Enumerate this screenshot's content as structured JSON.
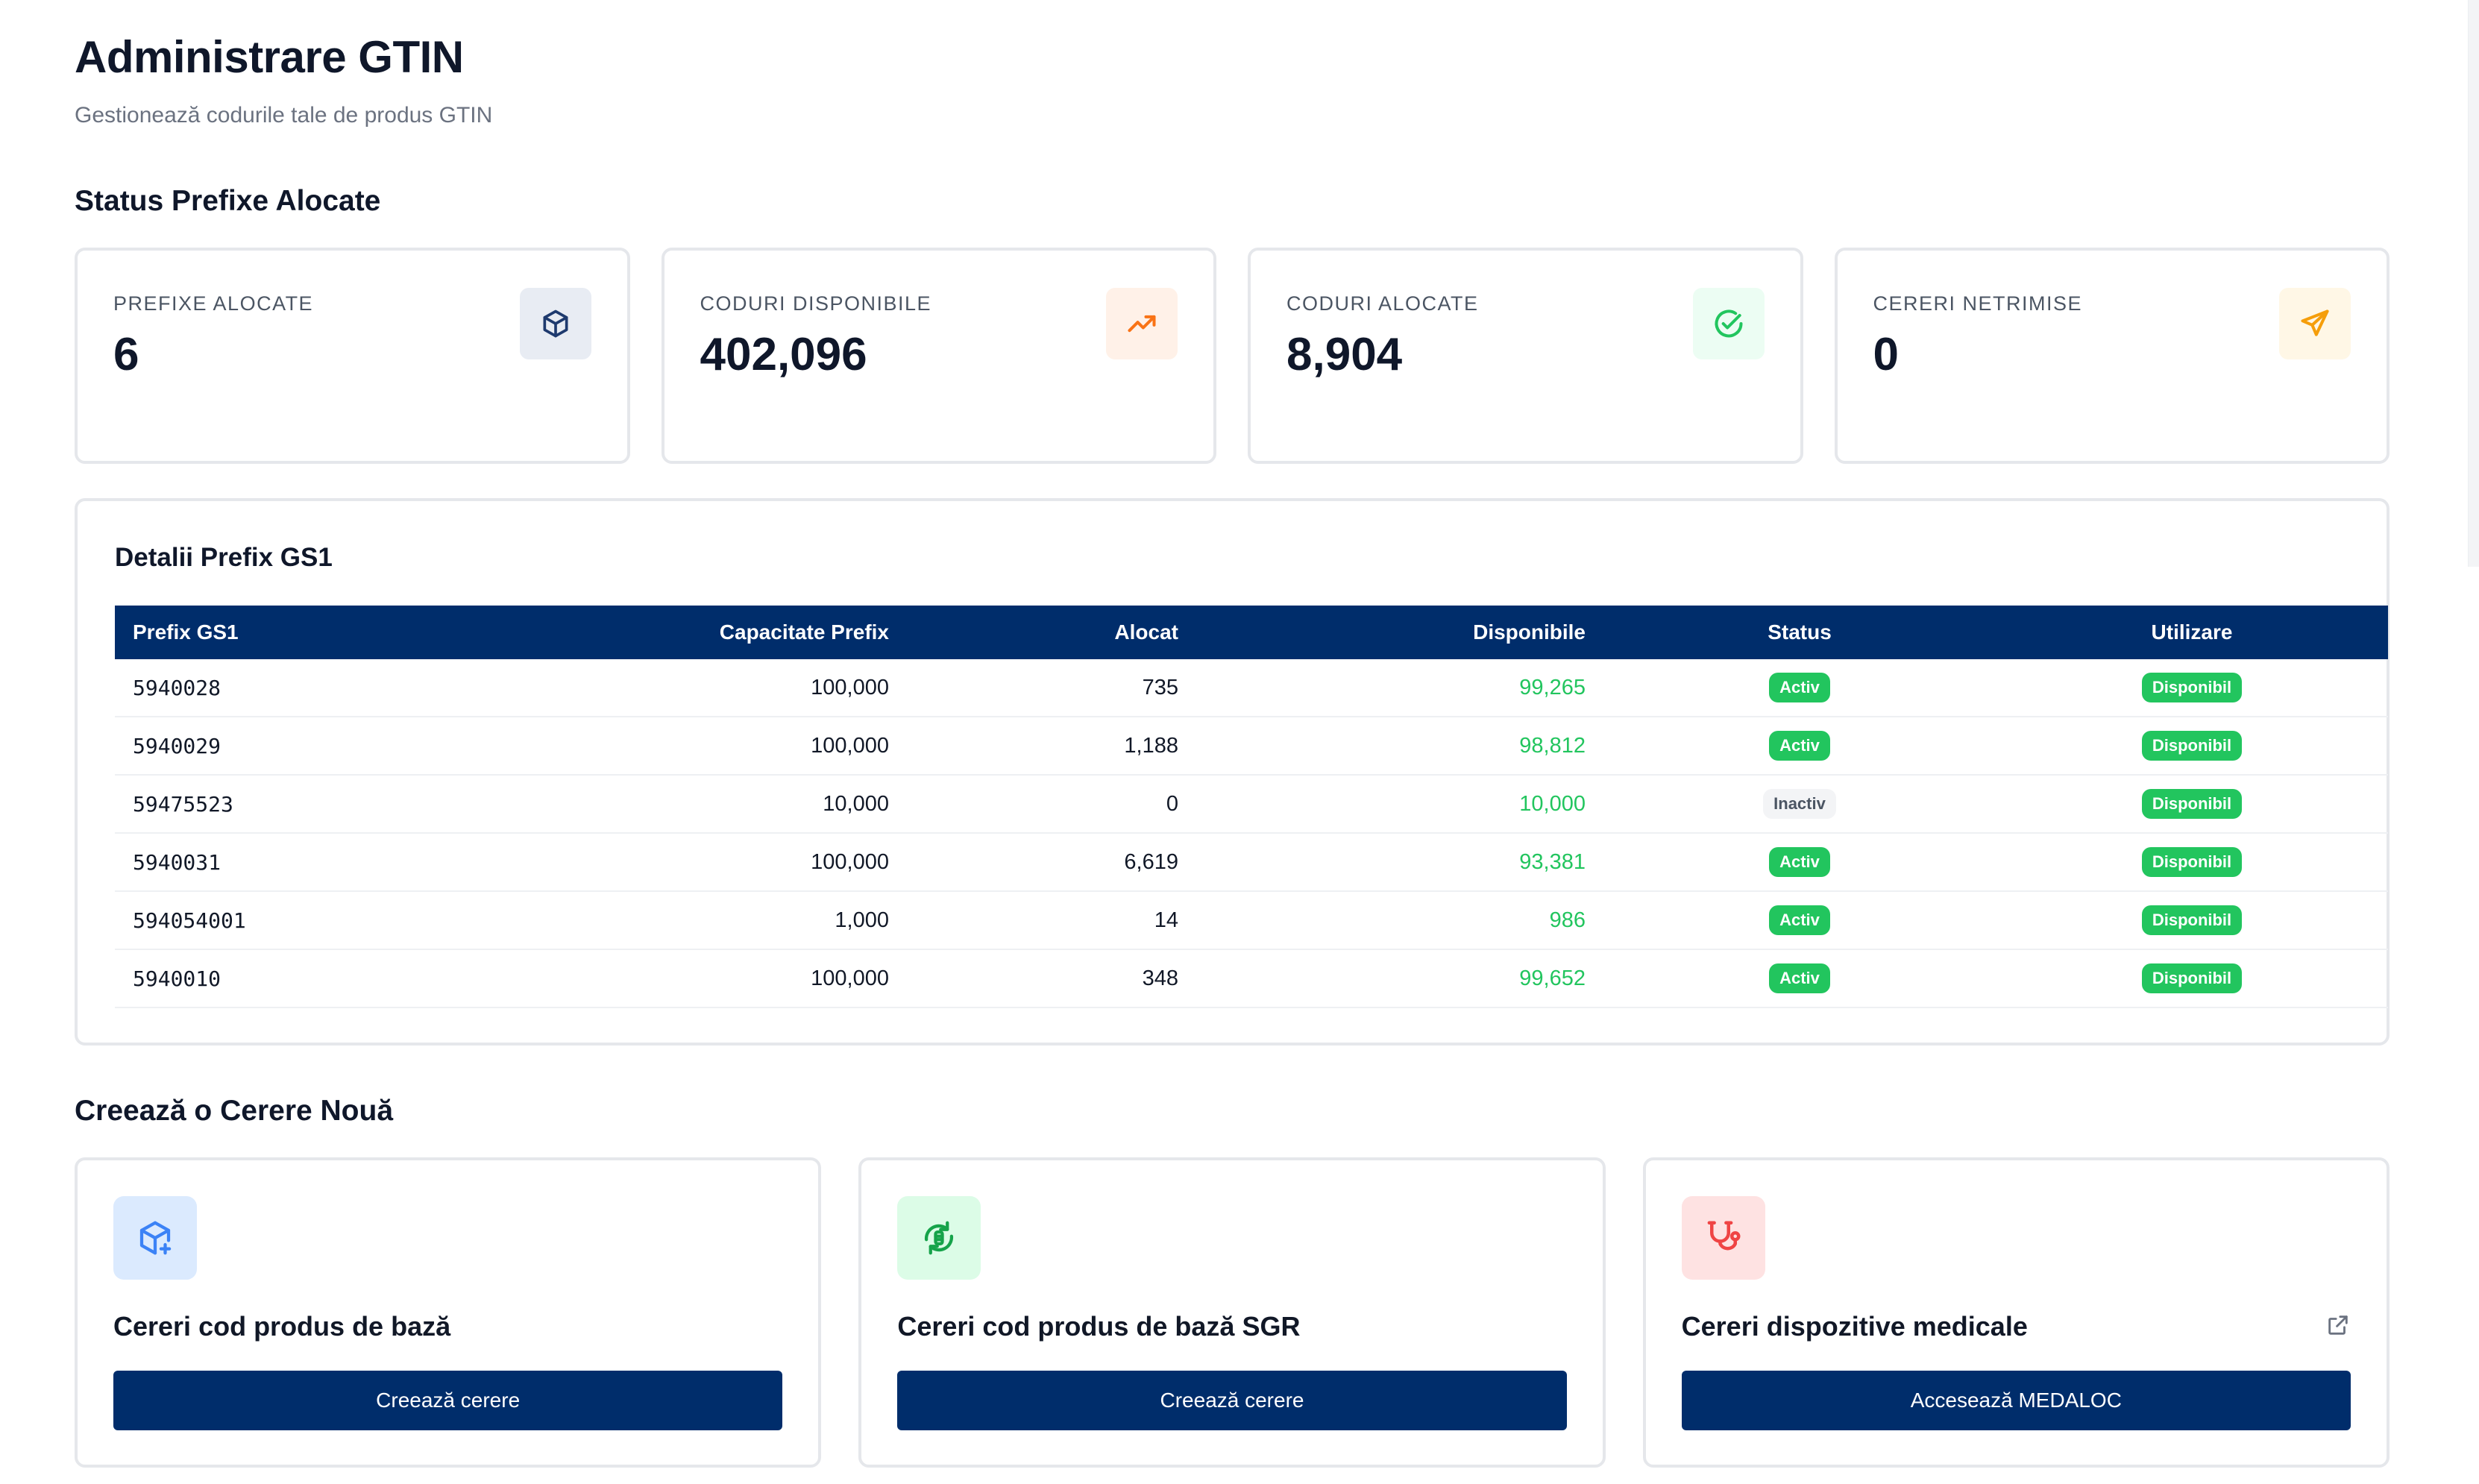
{
  "header": {
    "title": "Administrare GTIN",
    "subtitle": "Gestionează codurile tale de produs GTIN"
  },
  "stats_section": {
    "title": "Status Prefixe Alocate",
    "cards": [
      {
        "label": "PREFIXE ALOCATE",
        "value": "6",
        "icon": "box-icon",
        "icon_color": "#1e3a6e",
        "icon_bg": "#e8ecf3"
      },
      {
        "label": "CODURI DISPONIBILE",
        "value": "402,096",
        "icon": "trending-up-icon",
        "icon_color": "#f97316",
        "icon_bg": "#fff1e8"
      },
      {
        "label": "CODURI ALOCATE",
        "value": "8,904",
        "icon": "check-circle-icon",
        "icon_color": "#22c55e",
        "icon_bg": "#ecfdf3"
      },
      {
        "label": "CERERI NETRIMISE",
        "value": "0",
        "icon": "send-icon",
        "icon_color": "#f59e0b",
        "icon_bg": "#fff7e6"
      }
    ]
  },
  "prefix_table": {
    "title": "Detalii Prefix GS1",
    "columns": [
      "Prefix GS1",
      "Capacitate Prefix",
      "Alocat",
      "Disponibile",
      "Status",
      "Utilizare"
    ],
    "rows": [
      {
        "prefix": "5940028",
        "capacity": "100,000",
        "allocated": "735",
        "available": "99,265",
        "status": "Activ",
        "usage": "Disponibil"
      },
      {
        "prefix": "5940029",
        "capacity": "100,000",
        "allocated": "1,188",
        "available": "98,812",
        "status": "Activ",
        "usage": "Disponibil"
      },
      {
        "prefix": "59475523",
        "capacity": "10,000",
        "allocated": "0",
        "available": "10,000",
        "status": "Inactiv",
        "usage": "Disponibil"
      },
      {
        "prefix": "5940031",
        "capacity": "100,000",
        "allocated": "6,619",
        "available": "93,381",
        "status": "Activ",
        "usage": "Disponibil"
      },
      {
        "prefix": "594054001",
        "capacity": "1,000",
        "allocated": "14",
        "available": "986",
        "status": "Activ",
        "usage": "Disponibil"
      },
      {
        "prefix": "5940010",
        "capacity": "100,000",
        "allocated": "348",
        "available": "99,652",
        "status": "Activ",
        "usage": "Disponibil"
      }
    ]
  },
  "new_request_section": {
    "title": "Creează o Cerere Nouă",
    "cards": [
      {
        "title": "Cereri cod produs de bază",
        "button": "Creează cerere",
        "icon": "box-plus-icon",
        "icon_color": "#3b82f6",
        "icon_bg": "#dbeafe"
      },
      {
        "title": "Cereri cod produs de bază SGR",
        "button": "Creează cerere",
        "icon": "recycle-bottle-icon",
        "icon_color": "#16a34a",
        "icon_bg": "#dcfce7"
      },
      {
        "title": "Cereri dispozitive medicale",
        "button": "Accesează MEDALOC",
        "icon": "stethoscope-icon",
        "icon_color": "#ef4444",
        "icon_bg": "#fee2e2",
        "external_icon": "external-link-icon"
      }
    ]
  },
  "colors": {
    "primary": "#002d6b",
    "success": "#22c55e",
    "border": "#e5e7eb"
  }
}
